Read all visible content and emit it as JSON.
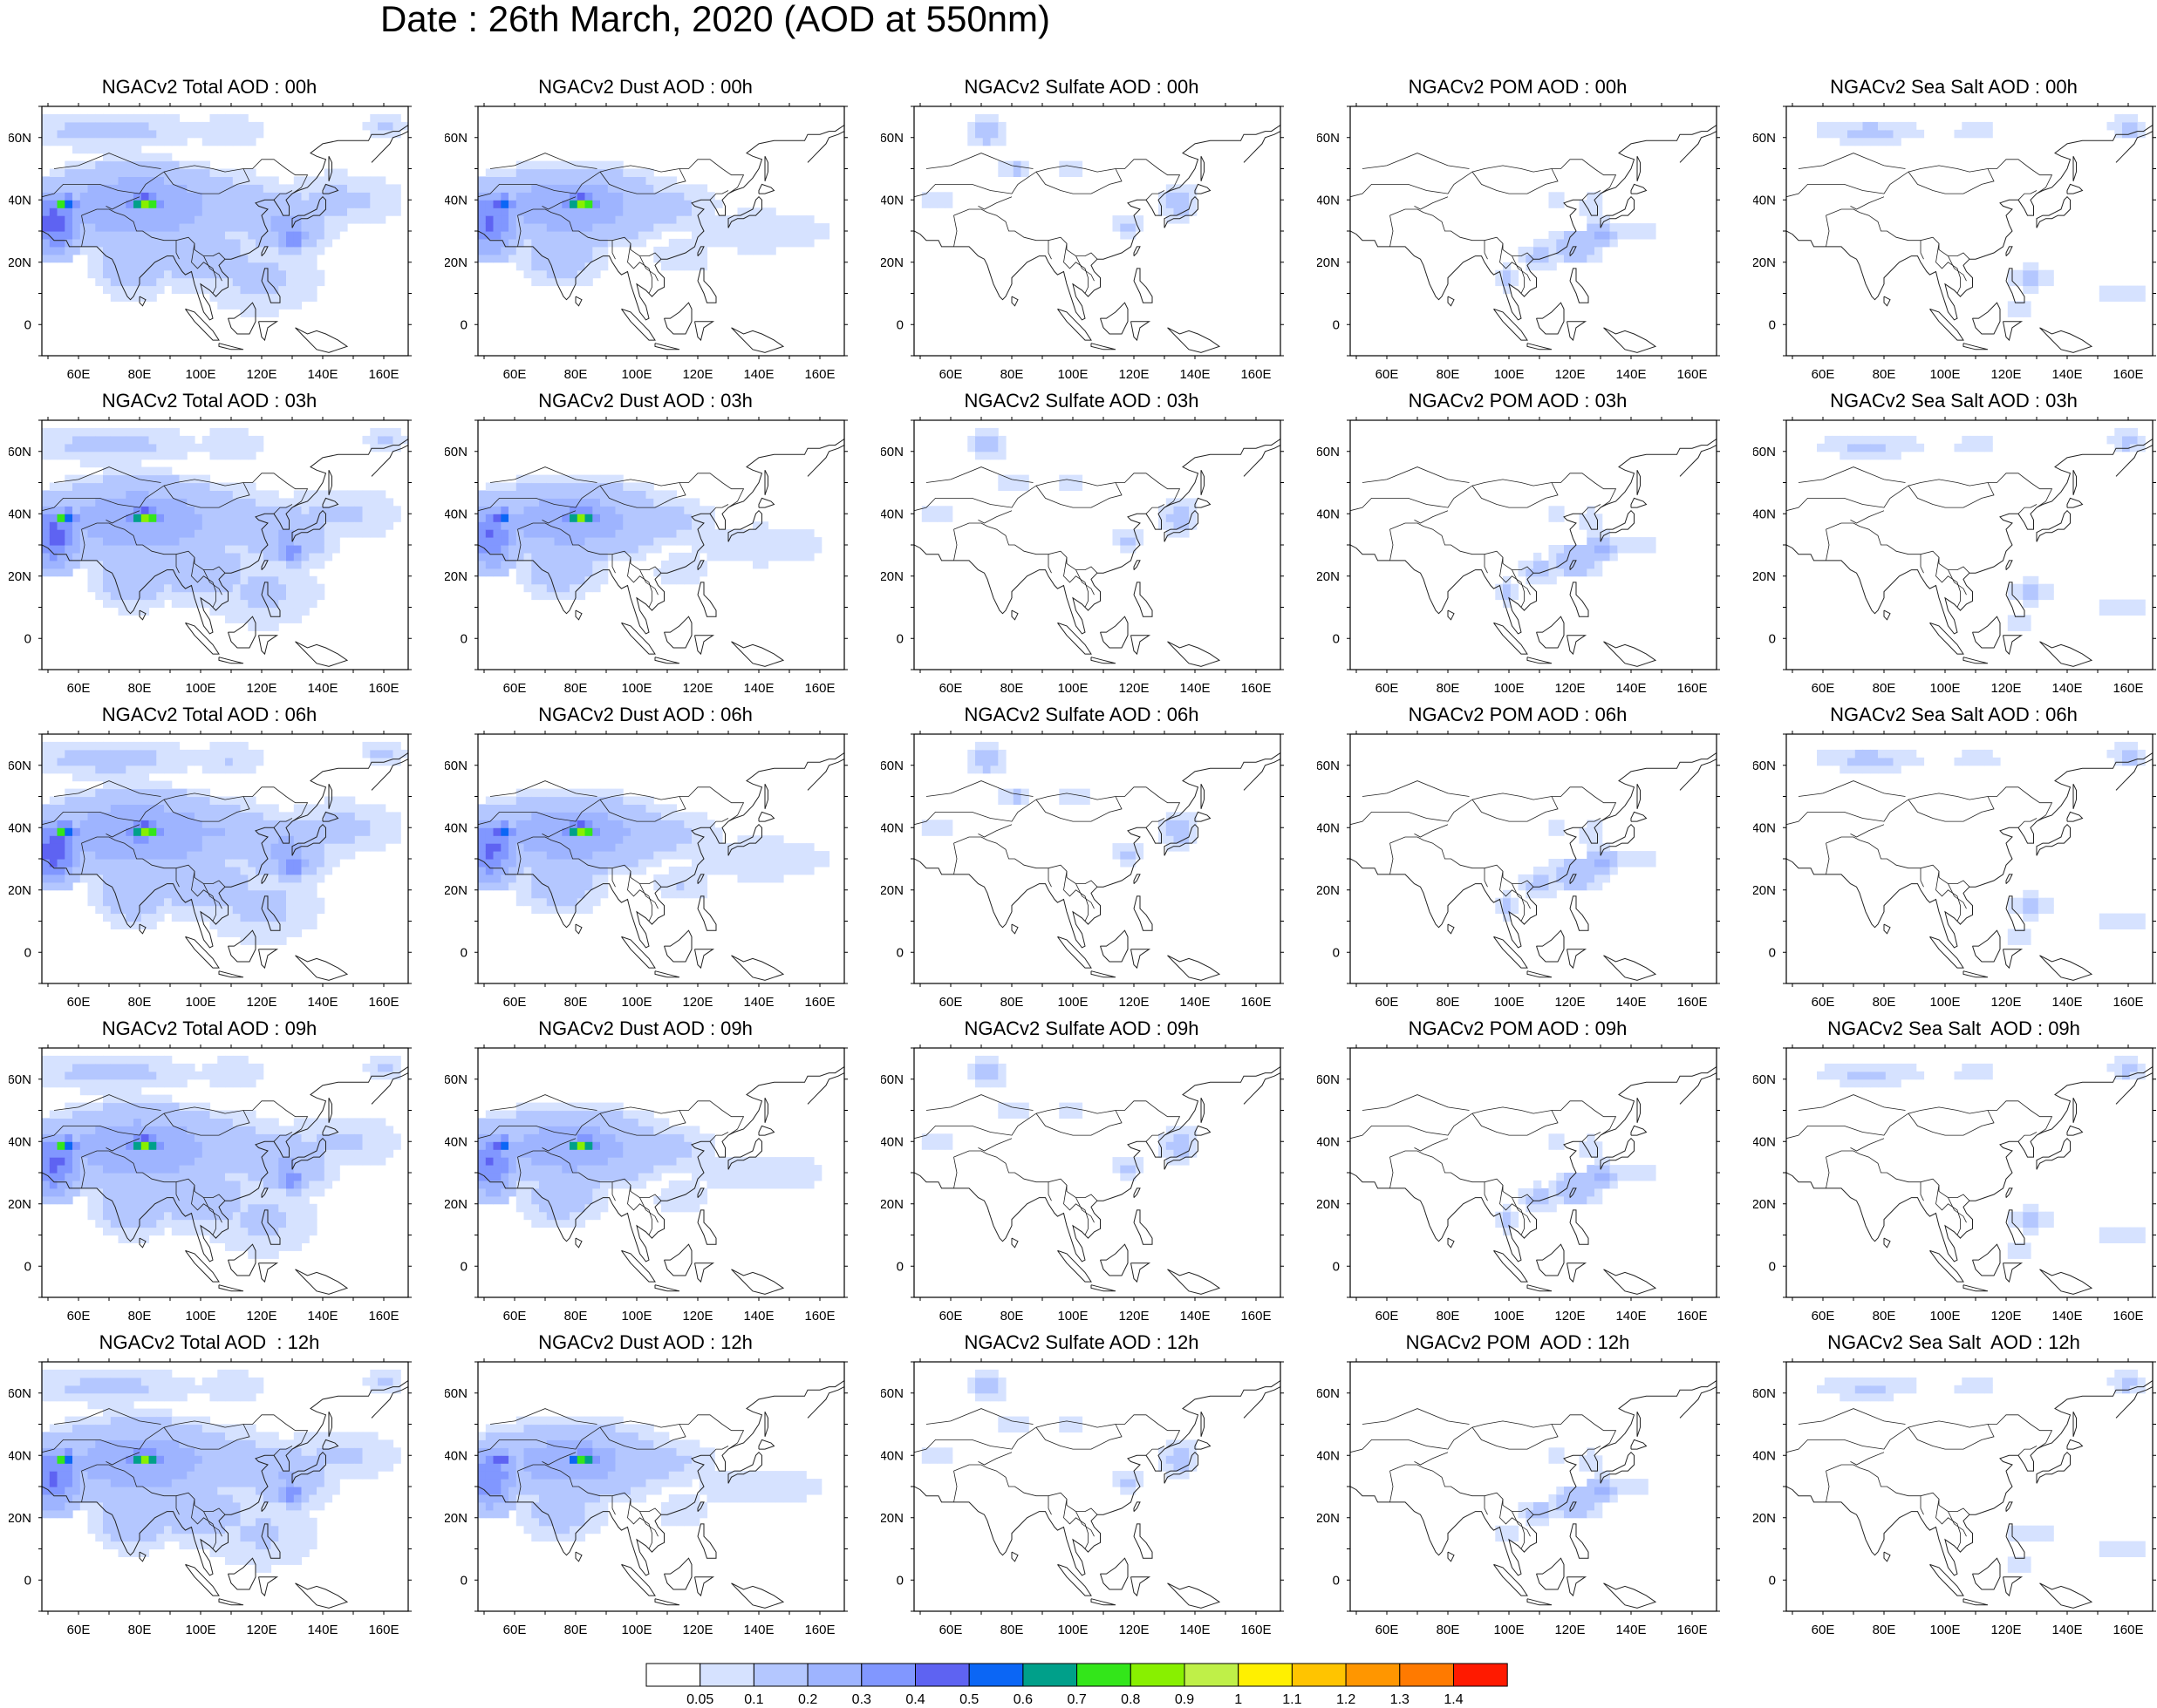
{
  "title": "Date : 26th March, 2020 (AOD at 550nm)",
  "axes": {
    "x_ticks": [
      "60E",
      "80E",
      "100E",
      "120E",
      "140E",
      "160E"
    ],
    "y_ticks": [
      "60N",
      "40N",
      "20N",
      "0"
    ],
    "xlim": [
      48,
      168
    ],
    "ylim": [
      -10,
      70
    ]
  },
  "panels": [
    {
      "title": "NGACv2 Total AOD : 00h",
      "species": "total",
      "hour": "00"
    },
    {
      "title": "NGACv2 Dust AOD : 00h",
      "species": "dust",
      "hour": "00"
    },
    {
      "title": "NGACv2 Sulfate AOD : 00h",
      "species": "sulfate",
      "hour": "00"
    },
    {
      "title": "NGACv2 POM AOD : 00h",
      "species": "pom",
      "hour": "00"
    },
    {
      "title": "NGACv2 Sea Salt AOD : 00h",
      "species": "seasalt",
      "hour": "00"
    },
    {
      "title": "NGACv2 Total AOD : 03h",
      "species": "total",
      "hour": "03"
    },
    {
      "title": "NGACv2 Dust AOD : 03h",
      "species": "dust",
      "hour": "03"
    },
    {
      "title": "NGACv2 Sulfate AOD : 03h",
      "species": "sulfate",
      "hour": "03"
    },
    {
      "title": "NGACv2 POM AOD : 03h",
      "species": "pom",
      "hour": "03"
    },
    {
      "title": "NGACv2 Sea Salt AOD : 03h",
      "species": "seasalt",
      "hour": "03"
    },
    {
      "title": "NGACv2 Total AOD : 06h",
      "species": "total",
      "hour": "06"
    },
    {
      "title": "NGACv2 Dust AOD : 06h",
      "species": "dust",
      "hour": "06"
    },
    {
      "title": "NGACv2 Sulfate AOD : 06h",
      "species": "sulfate",
      "hour": "06"
    },
    {
      "title": "NGACv2 POM AOD : 06h",
      "species": "pom",
      "hour": "06"
    },
    {
      "title": "NGACv2 Sea Salt AOD : 06h",
      "species": "seasalt",
      "hour": "06"
    },
    {
      "title": "NGACv2 Total AOD : 09h",
      "species": "total",
      "hour": "09"
    },
    {
      "title": "NGACv2 Dust AOD : 09h",
      "species": "dust",
      "hour": "09"
    },
    {
      "title": "NGACv2 Sulfate AOD : 09h",
      "species": "sulfate",
      "hour": "09"
    },
    {
      "title": "NGACv2 POM AOD : 09h",
      "species": "pom",
      "hour": "09"
    },
    {
      "title": "NGACv2 Sea Salt  AOD : 09h",
      "species": "seasalt",
      "hour": "09"
    },
    {
      "title": "NGACv2 Total AOD  : 12h",
      "species": "total",
      "hour": "12"
    },
    {
      "title": "NGACv2 Dust AOD : 12h",
      "species": "dust",
      "hour": "12"
    },
    {
      "title": "NGACv2 Sulfate AOD : 12h",
      "species": "sulfate",
      "hour": "12"
    },
    {
      "title": "NGACv2 POM  AOD : 12h",
      "species": "pom",
      "hour": "12"
    },
    {
      "title": "NGACv2 Sea Salt  AOD : 12h",
      "species": "seasalt",
      "hour": "12"
    }
  ],
  "colorbar": {
    "labels": [
      "0.05",
      "0.1",
      "0.2",
      "0.3",
      "0.4",
      "0.5",
      "0.6",
      "0.7",
      "0.8",
      "0.9",
      "1",
      "1.1",
      "1.2",
      "1.3",
      "1.4"
    ],
    "colors": [
      "#ffffff",
      "#d6e2ff",
      "#b4c7ff",
      "#9eb4ff",
      "#8197ff",
      "#5e63f2",
      "#0b66f5",
      "#00a08a",
      "#33e61a",
      "#88f000",
      "#bff048",
      "#fff000",
      "#ffc400",
      "#ff9600",
      "#ff7a00",
      "#ff1a00"
    ]
  }
}
